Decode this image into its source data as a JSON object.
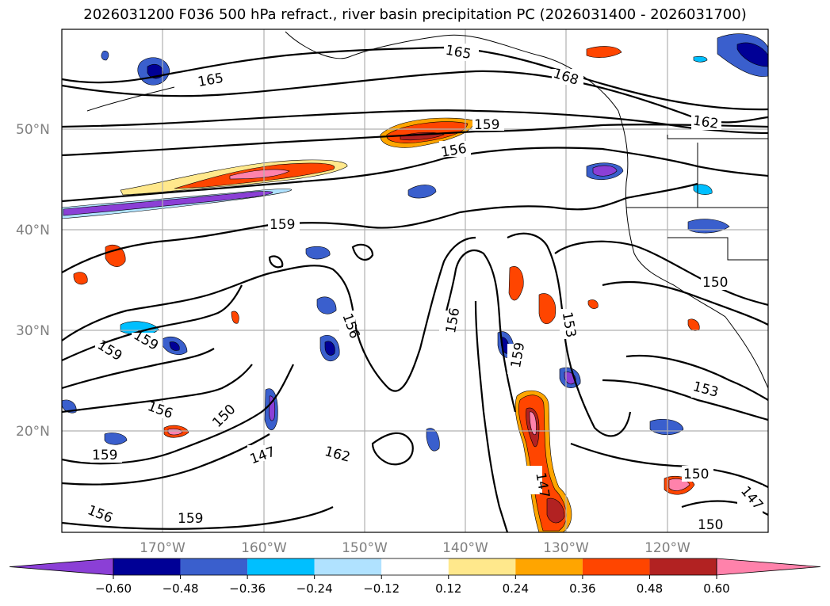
{
  "title": "2026031200 F036 500 hPa refract., river basin precipitation PC (2026031400 - 2026031700)",
  "lat_labels": [
    "50°N",
    "40°N",
    "30°N",
    "20°N"
  ],
  "lon_labels": [
    "170°W",
    "160°W",
    "150°W",
    "140°W",
    "130°W",
    "120°W"
  ],
  "contour_labels": [
    "165",
    "165",
    "168",
    "162",
    "159",
    "156",
    "159",
    "159",
    "156",
    "156",
    "159",
    "153",
    "150",
    "159",
    "156",
    "150",
    "153",
    "147",
    "162",
    "159",
    "147",
    "156",
    "159",
    "150",
    "150",
    "147"
  ],
  "colorbar": {
    "ticks": [
      "−0.60",
      "−0.48",
      "−0.36",
      "−0.24",
      "−0.12",
      "0.12",
      "0.24",
      "0.36",
      "0.48",
      "0.60"
    ],
    "colors": [
      "#8b3fd6",
      "#000096",
      "#3a5fcd",
      "#00bfff",
      "#b0e2ff",
      "#ffffff",
      "#ffe88c",
      "#ffa500",
      "#ff4500",
      "#b22222",
      "#ff82ab"
    ]
  }
}
